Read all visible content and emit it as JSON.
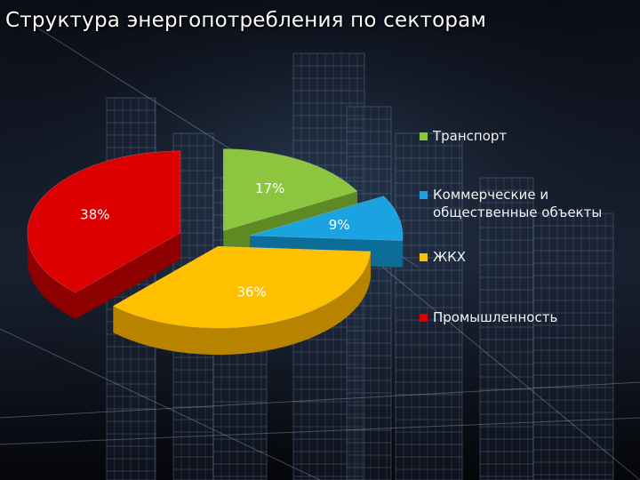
{
  "slide": {
    "title": "Структура энергопотребления по секторам"
  },
  "chart_data": {
    "type": "pie",
    "title": "",
    "legend_position": "right",
    "slices": [
      {
        "name": "Транспорт",
        "value": 17,
        "label": "17%",
        "color": "#8cc63f",
        "side_color": "#5e8a25"
      },
      {
        "name": "Коммерческие и общественные объекты",
        "value": 9,
        "label": "9%",
        "color": "#1aa3e0",
        "side_color": "#0d6d99"
      },
      {
        "name": "ЖКХ",
        "value": 36,
        "label": "36%",
        "color": "#ffc000",
        "side_color": "#b88400"
      },
      {
        "name": "Промышленность",
        "value": 38,
        "label": "38%",
        "color": "#dd0000",
        "side_color": "#8f0000"
      }
    ],
    "legend": [
      {
        "lines": [
          "Транспорт"
        ],
        "color": "#8cc63f"
      },
      {
        "lines": [
          "Коммерческие и",
          "общественные объекты"
        ],
        "color": "#1aa3e0"
      },
      {
        "lines": [
          "ЖКХ"
        ],
        "color": "#ffc000"
      },
      {
        "lines": [
          "Промышленность"
        ],
        "color": "#dd0000"
      }
    ]
  }
}
